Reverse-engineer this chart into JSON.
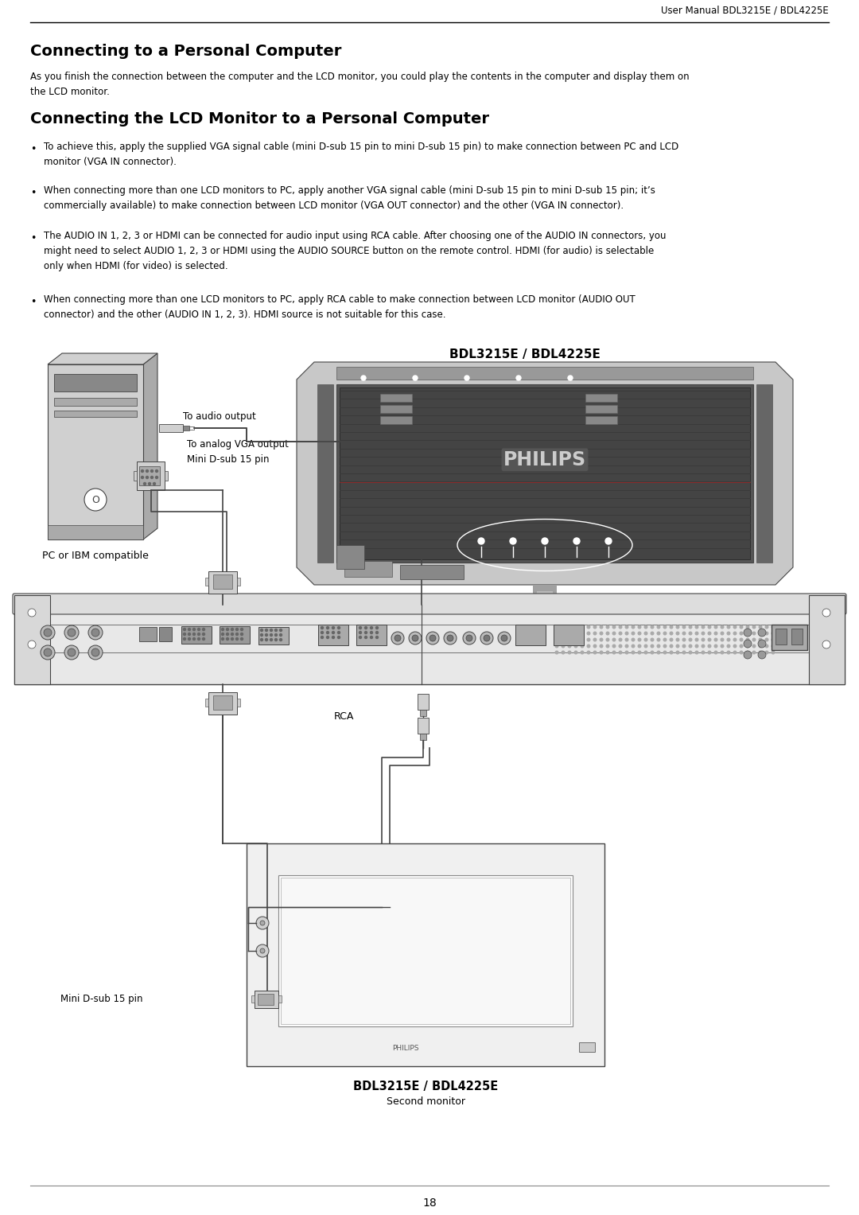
{
  "header_text": "User Manual BDL3215E / BDL4225E",
  "title1": "Connecting to a Personal Computer",
  "body1": "As you finish the connection between the computer and the LCD monitor, you could play the contents in the computer and display them on\nthe LCD monitor.",
  "title2": "Connecting the LCD Monitor to a Personal Computer",
  "bullets": [
    "To achieve this, apply the supplied VGA signal cable (mini D-sub 15 pin to mini D-sub 15 pin) to make connection between PC and LCD\nmonitor (VGA IN connector).",
    "When connecting more than one LCD monitors to PC, apply another VGA signal cable (mini D-sub 15 pin to mini D-sub 15 pin; it’s\ncommercially available) to make connection between LCD monitor (VGA OUT connector) and the other (VGA IN connector).",
    "The AUDIO IN 1, 2, 3 or HDMI can be connected for audio input using RCA cable. After choosing one of the AUDIO IN connectors, you\nmight need to select AUDIO 1, 2, 3 or HDMI using the AUDIO SOURCE button on the remote control. HDMI (for audio) is selectable\nonly when HDMI (for video) is selected.",
    "When connecting more than one LCD monitors to PC, apply RCA cable to make connection between LCD monitor (AUDIO OUT\nconnector) and the other (AUDIO IN 1, 2, 3). HDMI source is not suitable for this case."
  ],
  "diagram_label_top": "BDL3215E / BDL4225E",
  "label_audio": "To audio output",
  "label_vga": "To analog VGA output\nMini D-sub 15 pin",
  "label_pc": "PC or IBM compatible",
  "label_rca": "RCA",
  "label_mini_dsub": "Mini D-sub 15 pin",
  "label_second_monitor_title": "BDL3215E / BDL4225E",
  "label_second_monitor_sub": "Second monitor",
  "page_number": "18",
  "bg_color": "#ffffff",
  "text_color": "#000000",
  "lc": "#444444",
  "gray_light": "#d0d0d0",
  "gray_mid": "#aaaaaa",
  "gray_dark": "#888888"
}
